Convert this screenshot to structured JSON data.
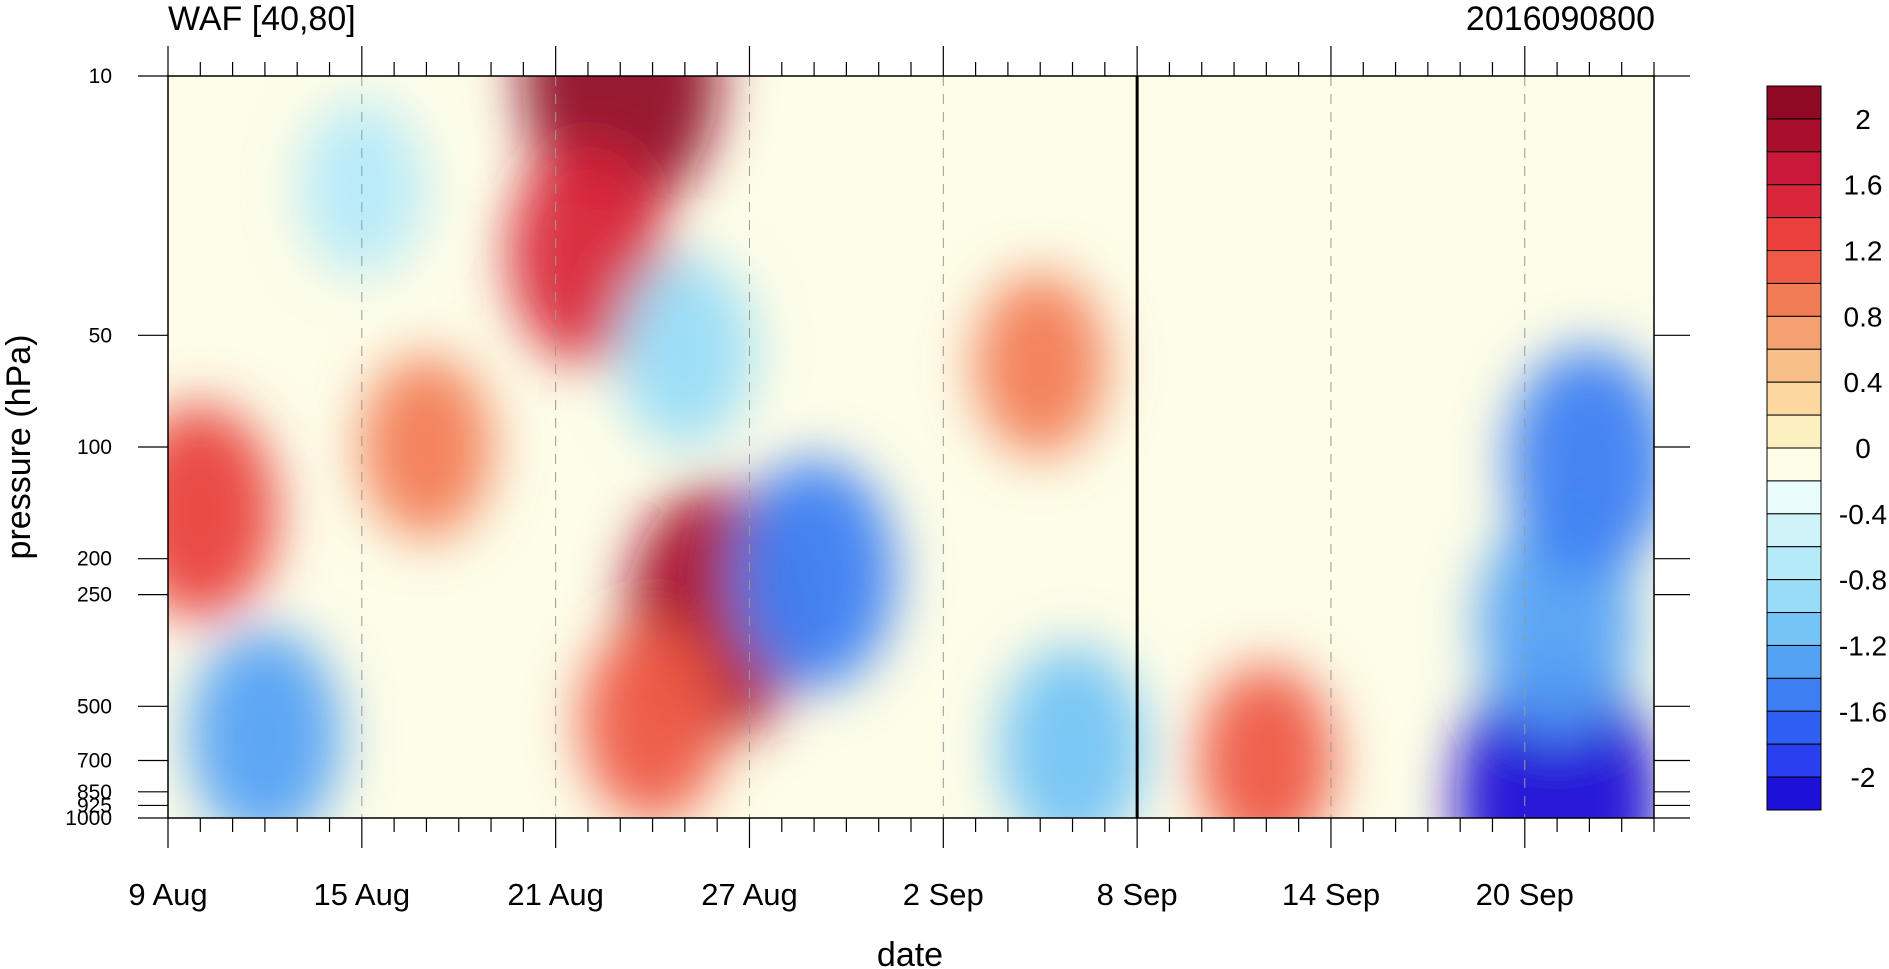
{
  "chart_data": {
    "type": "heatmap",
    "title_left": "WAF [40,80]",
    "title_right": "2016090800",
    "xlabel": "date",
    "ylabel": "pressure (hPa)",
    "x_ticks": [
      "9 Aug",
      "15 Aug",
      "21 Aug",
      "27 Aug",
      "2 Sep",
      "8 Sep",
      "14 Sep",
      "20 Sep"
    ],
    "y_ticks": [
      "10",
      "50",
      "100",
      "200",
      "250",
      "500",
      "700",
      "850",
      "925",
      "1000"
    ],
    "y_scale": "log",
    "x_range": [
      "2016-08-09",
      "2016-09-24"
    ],
    "y_range": [
      1000,
      10
    ],
    "marked_date": "2016-09-08",
    "colorbar": {
      "levels": [
        -2.2,
        -2.0,
        -1.8,
        -1.6,
        -1.4,
        -1.2,
        -1.0,
        -0.8,
        -0.6,
        -0.4,
        -0.2,
        0,
        0.2,
        0.4,
        0.6,
        0.8,
        1.0,
        1.2,
        1.4,
        1.6,
        1.8,
        2.0,
        2.2
      ],
      "colors": [
        "#1d10d8",
        "#2a3ff0",
        "#2f5ef2",
        "#3d7ff3",
        "#54a2f4",
        "#74c4f6",
        "#98dcf8",
        "#b5eaf9",
        "#cff3f9",
        "#e9fbfb",
        "#fdfde8",
        "#fdf0c0",
        "#fbd8a0",
        "#f8c088",
        "#f5a070",
        "#f27c55",
        "#ee5a45",
        "#e9403d",
        "#d9263a",
        "#c8193a",
        "#a80d2c",
        "#900a26"
      ],
      "labels": [
        "2",
        "1.6",
        "1.2",
        "0.8",
        "0.4",
        "0",
        "-0.4",
        "-0.8",
        "-1.2",
        "-1.6",
        "-2"
      ]
    },
    "features": [
      {
        "date": "2016-08-23",
        "pressure": 10,
        "value": 2.1
      },
      {
        "date": "2016-08-22",
        "pressure": 30,
        "value": 1.4
      },
      {
        "date": "2016-08-26",
        "pressure": 280,
        "value": 1.8
      },
      {
        "date": "2016-08-10",
        "pressure": 150,
        "value": 1.3
      },
      {
        "date": "2016-08-17",
        "pressure": 100,
        "value": 0.9
      },
      {
        "date": "2016-09-05",
        "pressure": 60,
        "value": 0.9
      },
      {
        "date": "2016-08-24",
        "pressure": 550,
        "value": 1.1
      },
      {
        "date": "2016-08-15",
        "pressure": 20,
        "value": -0.8
      },
      {
        "date": "2016-08-25",
        "pressure": 55,
        "value": -1.0
      },
      {
        "date": "2016-08-29",
        "pressure": 220,
        "value": -1.5
      },
      {
        "date": "2016-08-12",
        "pressure": 600,
        "value": -1.3
      },
      {
        "date": "2016-09-06",
        "pressure": 650,
        "value": -1.2
      },
      {
        "date": "2016-09-21",
        "pressure": 900,
        "value": -2.2
      },
      {
        "date": "2016-09-21",
        "pressure": 300,
        "value": -1.4
      },
      {
        "date": "2016-09-22",
        "pressure": 110,
        "value": -1.5
      },
      {
        "date": "2016-09-12",
        "pressure": 700,
        "value": 1.0
      }
    ]
  }
}
